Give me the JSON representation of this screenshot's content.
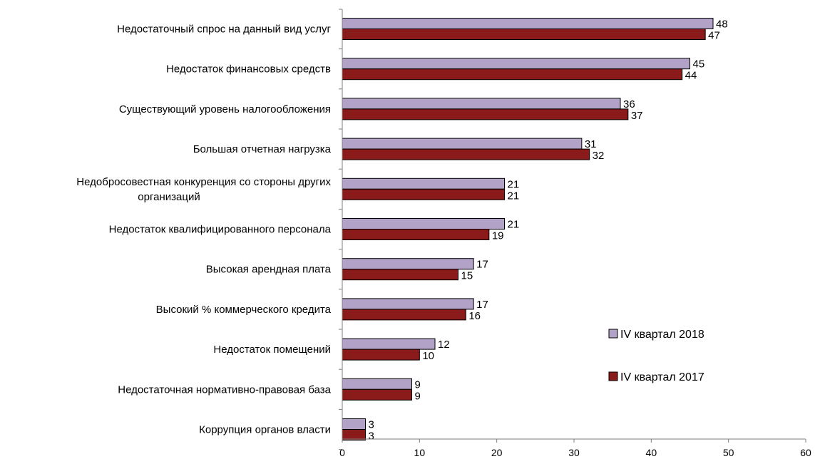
{
  "chart_data": {
    "type": "bar",
    "orientation": "horizontal",
    "categories": [
      [
        "Недостаточный  спрос на данный вид услуг"
      ],
      [
        "Недостаток финансовых средств"
      ],
      [
        "Существующий уровень налогообложения"
      ],
      [
        "Большая отчетная нагрузка"
      ],
      [
        "Недобросовестная конкуренция со стороны других",
        "организаций"
      ],
      [
        "Недостаток квалифицированного персонала"
      ],
      [
        "Высокая арендная плата"
      ],
      [
        "Высокий  % коммерческого кредита"
      ],
      [
        "Недостаток   помещений"
      ],
      [
        "Недостаточная нормативно-правовая база"
      ],
      [
        "Коррупция органов власти"
      ]
    ],
    "series": [
      {
        "name": "IV квартал 2018",
        "color": "#b3a2c7",
        "values": [
          48,
          45,
          36,
          31,
          21,
          21,
          17,
          17,
          12,
          9,
          3
        ]
      },
      {
        "name": "IV квартал 2017",
        "color": "#8b1a1a",
        "values": [
          47,
          44,
          37,
          32,
          21,
          19,
          15,
          16,
          10,
          9,
          3
        ]
      }
    ],
    "xlim": [
      0,
      60
    ],
    "xticks": [
      0,
      10,
      20,
      30,
      40,
      50,
      60
    ],
    "grid": false,
    "legend_position": "right"
  }
}
